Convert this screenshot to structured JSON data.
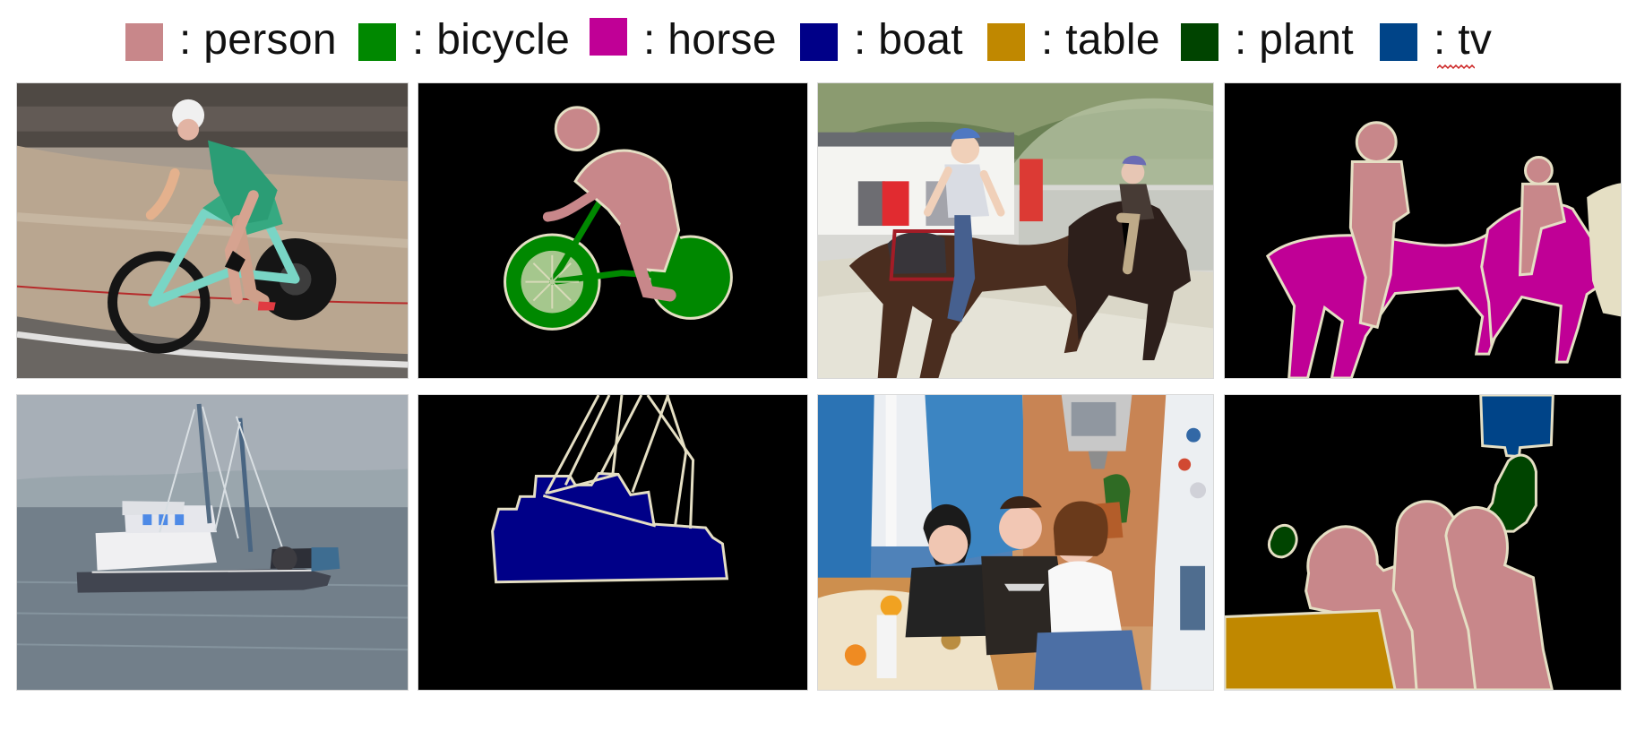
{
  "legend": {
    "items": [
      {
        "label": ": person",
        "color": "#c8878a",
        "swatch_name": "person-swatch"
      },
      {
        "label": ": bicycle",
        "color": "#008800",
        "swatch_name": "bicycle-swatch"
      },
      {
        "label": ": horse",
        "color": "#c00096",
        "swatch_name": "horse-swatch"
      },
      {
        "label": ": boat",
        "color": "#000088",
        "swatch_name": "boat-swatch"
      },
      {
        "label": ": table",
        "color": "#c08800",
        "swatch_name": "table-swatch"
      },
      {
        "label": ": plant",
        "color": "#004400",
        "swatch_name": "plant-swatch"
      },
      {
        "label": ": tv",
        "color": "#004488",
        "swatch_name": "tv-swatch"
      }
    ]
  },
  "panels": [
    {
      "name": "cyclist-photo-panel",
      "kind": "photo"
    },
    {
      "name": "cyclist-segmentation-mask",
      "kind": "mask"
    },
    {
      "name": "horse-riders-photo-panel",
      "kind": "photo"
    },
    {
      "name": "horse-riders-segmentation-mask",
      "kind": "mask"
    },
    {
      "name": "boat-photo-panel",
      "kind": "photo"
    },
    {
      "name": "boat-segmentation-mask",
      "kind": "mask"
    },
    {
      "name": "indoor-group-photo-panel",
      "kind": "photo"
    },
    {
      "name": "indoor-group-segmentation-mask",
      "kind": "mask"
    }
  ]
}
